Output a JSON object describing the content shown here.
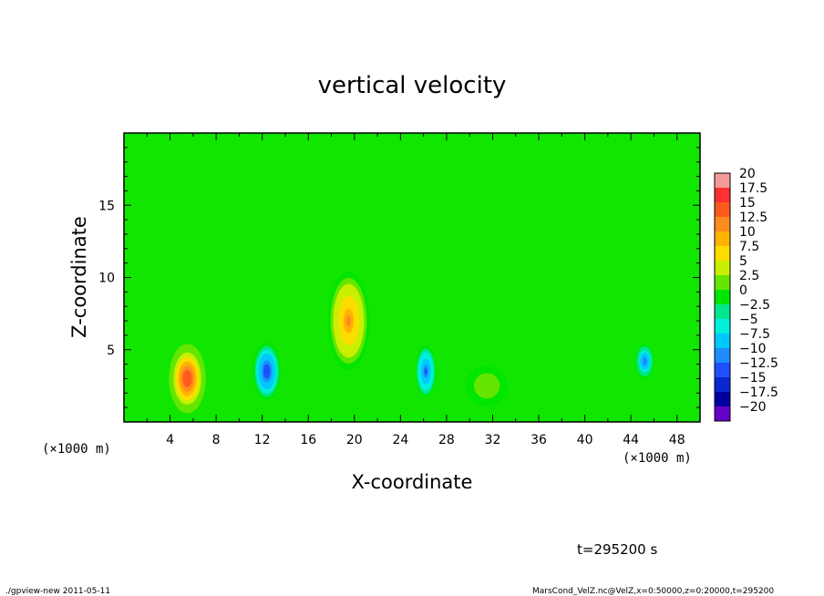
{
  "chart_data": {
    "type": "heatmap",
    "title": "vertical velocity",
    "xlabel": "X-coordinate",
    "ylabel": "Z-coordinate",
    "x_unit": "(×1000 m)",
    "y_unit": "(×1000 m)",
    "xlim": [
      0,
      50
    ],
    "ylim": [
      0,
      20
    ],
    "x_ticks": [
      4,
      8,
      12,
      16,
      20,
      24,
      28,
      32,
      36,
      40,
      44,
      48
    ],
    "y_ticks": [
      5,
      10,
      15
    ],
    "x_ticklabels": [
      "4",
      "8",
      "12",
      "16",
      "20",
      "24",
      "28",
      "32",
      "36",
      "40",
      "44",
      "48"
    ],
    "y_ticklabels": [
      "5",
      "10",
      "15"
    ],
    "colorbar": {
      "labels": [
        "20",
        "17.5",
        "15",
        "12.5",
        "10",
        "7.5",
        "5",
        "2.5",
        "0",
        "−2.5",
        "−5",
        "−7.5",
        "−10",
        "−12.5",
        "−15",
        "−17.5",
        "−20"
      ],
      "range": [
        -20,
        20
      ],
      "colors": [
        "#f49a9a",
        "#ff3030",
        "#ff5a1e",
        "#ff8c1e",
        "#ffb400",
        "#ffdc00",
        "#c8f000",
        "#64e600",
        "#00e600",
        "#00e68c",
        "#00f0dc",
        "#00c8ff",
        "#1e8cff",
        "#1e50ff",
        "#0a28d2",
        "#0000a0",
        "#6400c8"
      ]
    },
    "background_value": 0,
    "features": [
      {
        "label": "updraft",
        "x": 5.5,
        "z": 3.0,
        "peak": 18,
        "sx": 1.6,
        "sz": 2.4
      },
      {
        "label": "downdraft",
        "x": 12.4,
        "z": 3.5,
        "peak": -15,
        "sx": 1.2,
        "sz": 2.0
      },
      {
        "label": "updraft",
        "x": 19.5,
        "z": 7.0,
        "peak": 13,
        "sx": 1.8,
        "sz": 3.4
      },
      {
        "label": "downdraft",
        "x": 26.2,
        "z": 3.5,
        "peak": -13,
        "sx": 0.9,
        "sz": 1.8
      },
      {
        "label": "updraft",
        "x": 31.5,
        "z": 2.5,
        "peak": 3.5,
        "sx": 1.8,
        "sz": 1.4
      },
      {
        "label": "downdraft",
        "x": 45.2,
        "z": 4.2,
        "peak": -12,
        "sx": 0.8,
        "sz": 1.2
      }
    ],
    "annotation": "t=295200 s"
  },
  "footer": {
    "left": "./gpview-new   2011-05-11",
    "right": "MarsCond_VelZ.nc@VelZ,x=0:50000,z=0:20000,t=295200"
  }
}
